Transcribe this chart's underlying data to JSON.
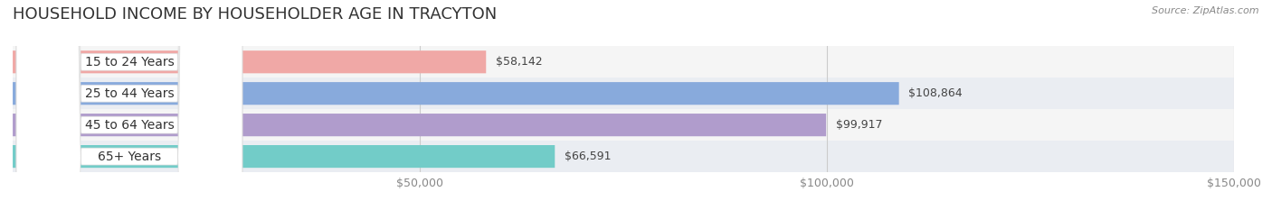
{
  "title": "HOUSEHOLD INCOME BY HOUSEHOLDER AGE IN TRACYTON",
  "source": "Source: ZipAtlas.com",
  "categories": [
    "15 to 24 Years",
    "25 to 44 Years",
    "45 to 64 Years",
    "65+ Years"
  ],
  "values": [
    58142,
    108864,
    99917,
    66591
  ],
  "bar_colors": [
    "#f0a8a6",
    "#88aadc",
    "#b09ccc",
    "#72ccc8"
  ],
  "label_values": [
    "$58,142",
    "$108,864",
    "$99,917",
    "$66,591"
  ],
  "row_bg_colors": [
    "#f5f5f5",
    "#eaedf2",
    "#f5f5f5",
    "#eaedf2"
  ],
  "background_color": "#ffffff",
  "xlim": [
    0,
    150000
  ],
  "xticks": [
    50000,
    100000,
    150000
  ],
  "xtick_labels": [
    "$50,000",
    "$100,000",
    "$150,000"
  ],
  "bar_height": 0.72,
  "title_fontsize": 13,
  "source_fontsize": 8,
  "label_fontsize": 9,
  "tick_fontsize": 9,
  "cat_fontsize": 10
}
